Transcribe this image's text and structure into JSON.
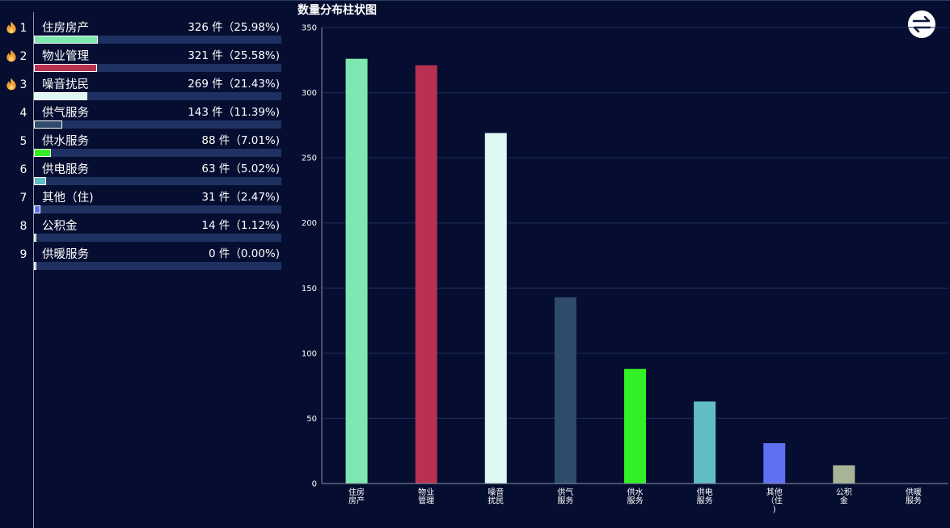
{
  "ranking": {
    "items": [
      {
        "rank": "1",
        "name": "住房房产",
        "count": 326,
        "percent": 25.98,
        "value_text": "326 件（25.98%)",
        "color": "#7ee8b0",
        "hot": true
      },
      {
        "rank": "2",
        "name": "物业管理",
        "count": 321,
        "percent": 25.58,
        "value_text": "321 件（25.58%)",
        "color": "#b83150",
        "hot": true
      },
      {
        "rank": "3",
        "name": "噪音扰民",
        "count": 269,
        "percent": 21.43,
        "value_text": "269 件（21.43%)",
        "color": "#e0f8f4",
        "hot": true
      },
      {
        "rank": "4",
        "name": "供气服务",
        "count": 143,
        "percent": 11.39,
        "value_text": "143 件（11.39%)",
        "color": "#2f4a6a",
        "hot": false
      },
      {
        "rank": "5",
        "name": "供水服务",
        "count": 88,
        "percent": 7.01,
        "value_text": "88 件（7.01%)",
        "color": "#33f026",
        "hot": false
      },
      {
        "rank": "6",
        "name": "供电服务",
        "count": 63,
        "percent": 5.02,
        "value_text": "63 件（5.02%)",
        "color": "#62bcc4",
        "hot": false
      },
      {
        "rank": "7",
        "name": "其他（住)",
        "count": 31,
        "percent": 2.47,
        "value_text": "31 件（2.47%)",
        "color": "#6070f2",
        "hot": false
      },
      {
        "rank": "8",
        "name": "公积金",
        "count": 14,
        "percent": 1.12,
        "value_text": "14 件（1.12%)",
        "color": "#a9b497",
        "hot": false
      },
      {
        "rank": "9",
        "name": "供暖服务",
        "count": 0,
        "percent": 0.0,
        "value_text": "0 件（0.00%)",
        "color": "#aab0c0",
        "hot": false
      }
    ]
  },
  "swap_icon": "swap-arrows-icon",
  "fire_icon": "fire-icon",
  "chart_data": {
    "type": "bar",
    "title": "数量分布柱状图",
    "categories": [
      "住房房产",
      "物业管理",
      "噪音扰民",
      "供气服务",
      "供水服务",
      "供电服务",
      "其他（住)",
      "公积金",
      "供暖服务"
    ],
    "category_labels": [
      [
        "住房",
        "房产"
      ],
      [
        "物业",
        "管理"
      ],
      [
        "噪音",
        "扰民"
      ],
      [
        "供气",
        "服务"
      ],
      [
        "供水",
        "服务"
      ],
      [
        "供电",
        "服务"
      ],
      [
        "其他",
        "（住",
        ")"
      ],
      [
        "公积",
        "金"
      ],
      [
        "供暖",
        "服务"
      ]
    ],
    "values": [
      326,
      321,
      269,
      143,
      88,
      63,
      31,
      14,
      0
    ],
    "colors": [
      "#7ee8b0",
      "#b83150",
      "#e0f8f4",
      "#2f4a6a",
      "#33f026",
      "#62bcc4",
      "#6070f2",
      "#a9b497",
      "#aab0c0"
    ],
    "ylim": [
      0,
      350
    ],
    "yticks": [
      0,
      50,
      100,
      150,
      200,
      250,
      300,
      350
    ],
    "grid": true,
    "xlabel": "",
    "ylabel": ""
  }
}
